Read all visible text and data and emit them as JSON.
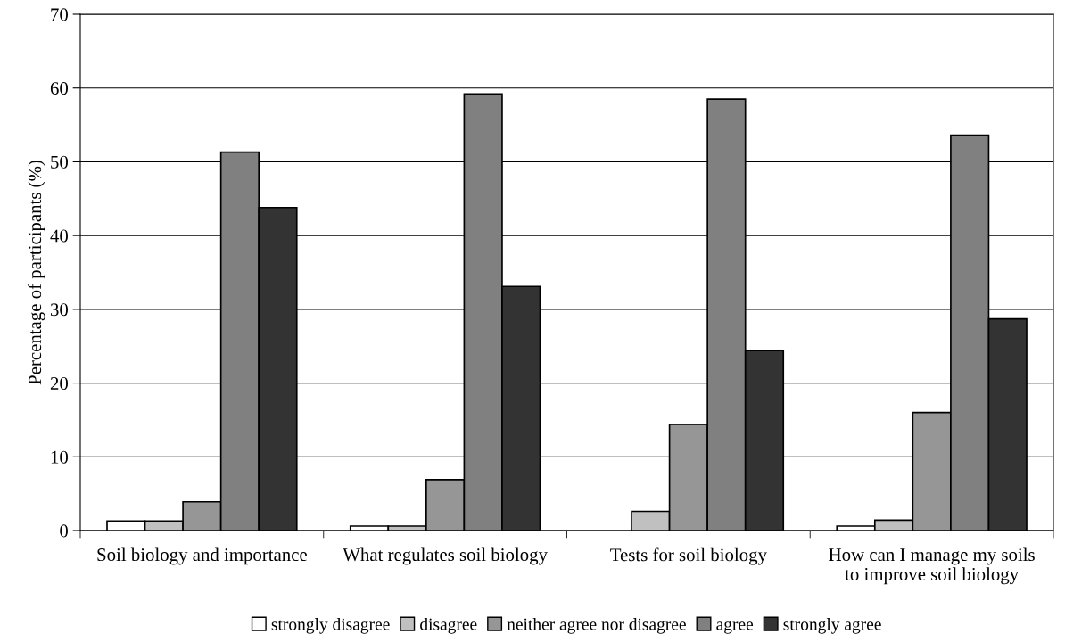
{
  "chart_data": {
    "type": "bar",
    "ylabel": "Percentage of participants (%)",
    "categories": [
      "Soil biology and importance",
      "What regulates soil biology",
      "Tests for soil biology",
      "How can I manage my soils to improve soil biology"
    ],
    "series": [
      {
        "name": "strongly disagree",
        "color": "#ffffff",
        "values": [
          1.3,
          0.6,
          0,
          0.6
        ]
      },
      {
        "name": "disagree",
        "color": "#c0c0c0",
        "values": [
          1.3,
          0.6,
          2.6,
          1.4
        ]
      },
      {
        "name": "neither agree nor disagree",
        "color": "#969696",
        "values": [
          3.9,
          6.9,
          14.4,
          16.0
        ]
      },
      {
        "name": "agree",
        "color": "#808080",
        "values": [
          51.3,
          59.2,
          58.5,
          53.6
        ]
      },
      {
        "name": "strongly agree",
        "color": "#333333",
        "values": [
          43.8,
          33.1,
          24.4,
          28.7
        ]
      }
    ],
    "ylim": [
      0,
      70
    ],
    "yticks": [
      0,
      10,
      20,
      30,
      40,
      50,
      60,
      70
    ],
    "grid": "y",
    "legend": "bottom"
  }
}
